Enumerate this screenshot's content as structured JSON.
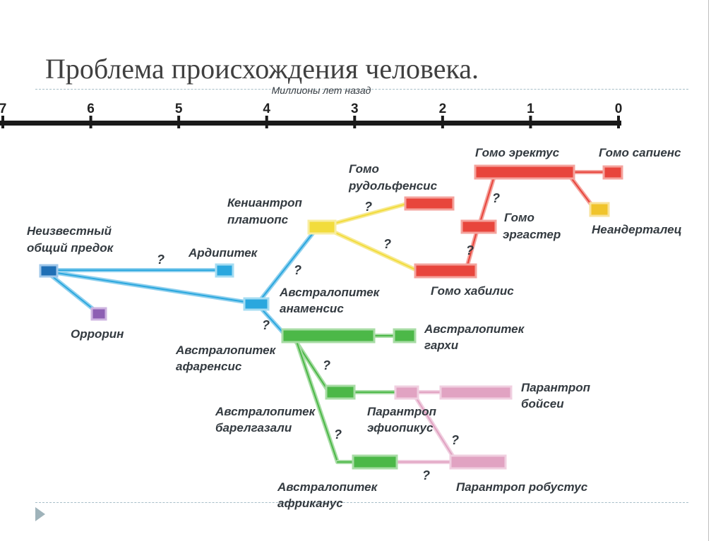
{
  "title": "Проблема происхождения человека.",
  "axis": {
    "title": "Миллионы лет назад",
    "ticks": [
      "7",
      "6",
      "5",
      "4",
      "3",
      "2",
      "1",
      "0"
    ]
  },
  "colors": {
    "common_ancestor": "#1f6fb5",
    "orrorin": "#8d5fb3",
    "blue": "#2aa7de",
    "yellow": "#f2dc3c",
    "red": "#e8453c",
    "green": "#4cb848",
    "pink": "#e1a3c2",
    "neanderthal": "#f0c42c"
  },
  "labels": {
    "unknown_ancestor": [
      "Неизвестный",
      "общий предок"
    ],
    "orrorin": "Оррорин",
    "ardipithecus": "Ардипитек",
    "kenyanthropus": [
      "Кениантроп",
      "платиопс"
    ],
    "homo_rudolfensis": [
      "Гомо",
      "рудольфенсис"
    ],
    "homo_erectus": "Гомо эректус",
    "homo_sapiens": "Гомо сапиенс",
    "homo_ergaster": [
      "Гомо",
      "эргастер"
    ],
    "neanderthal": "Неандерталец",
    "homo_habilis": "Гомо хабилис",
    "australopithecus_anamensis": [
      "Австралопитек",
      "анаменсис"
    ],
    "australopithecus_afarensis": [
      "Австралопитек",
      "афаренсис"
    ],
    "australopithecus_garhi": [
      "Австралопитек",
      "гархи"
    ],
    "paranthropus_boisei": [
      "Парантроп",
      "бойсеи"
    ],
    "paranthropus_aethiopicus": [
      "Парантроп",
      "эфиопикус"
    ],
    "australopithecus_bahrelghazali": [
      "Австралопитек",
      "барелгазали"
    ],
    "australopithecus_africanus": [
      "Австралопитек",
      "африканус"
    ],
    "paranthropus_robustus": "Парантроп робустус"
  },
  "question_mark": "?"
}
